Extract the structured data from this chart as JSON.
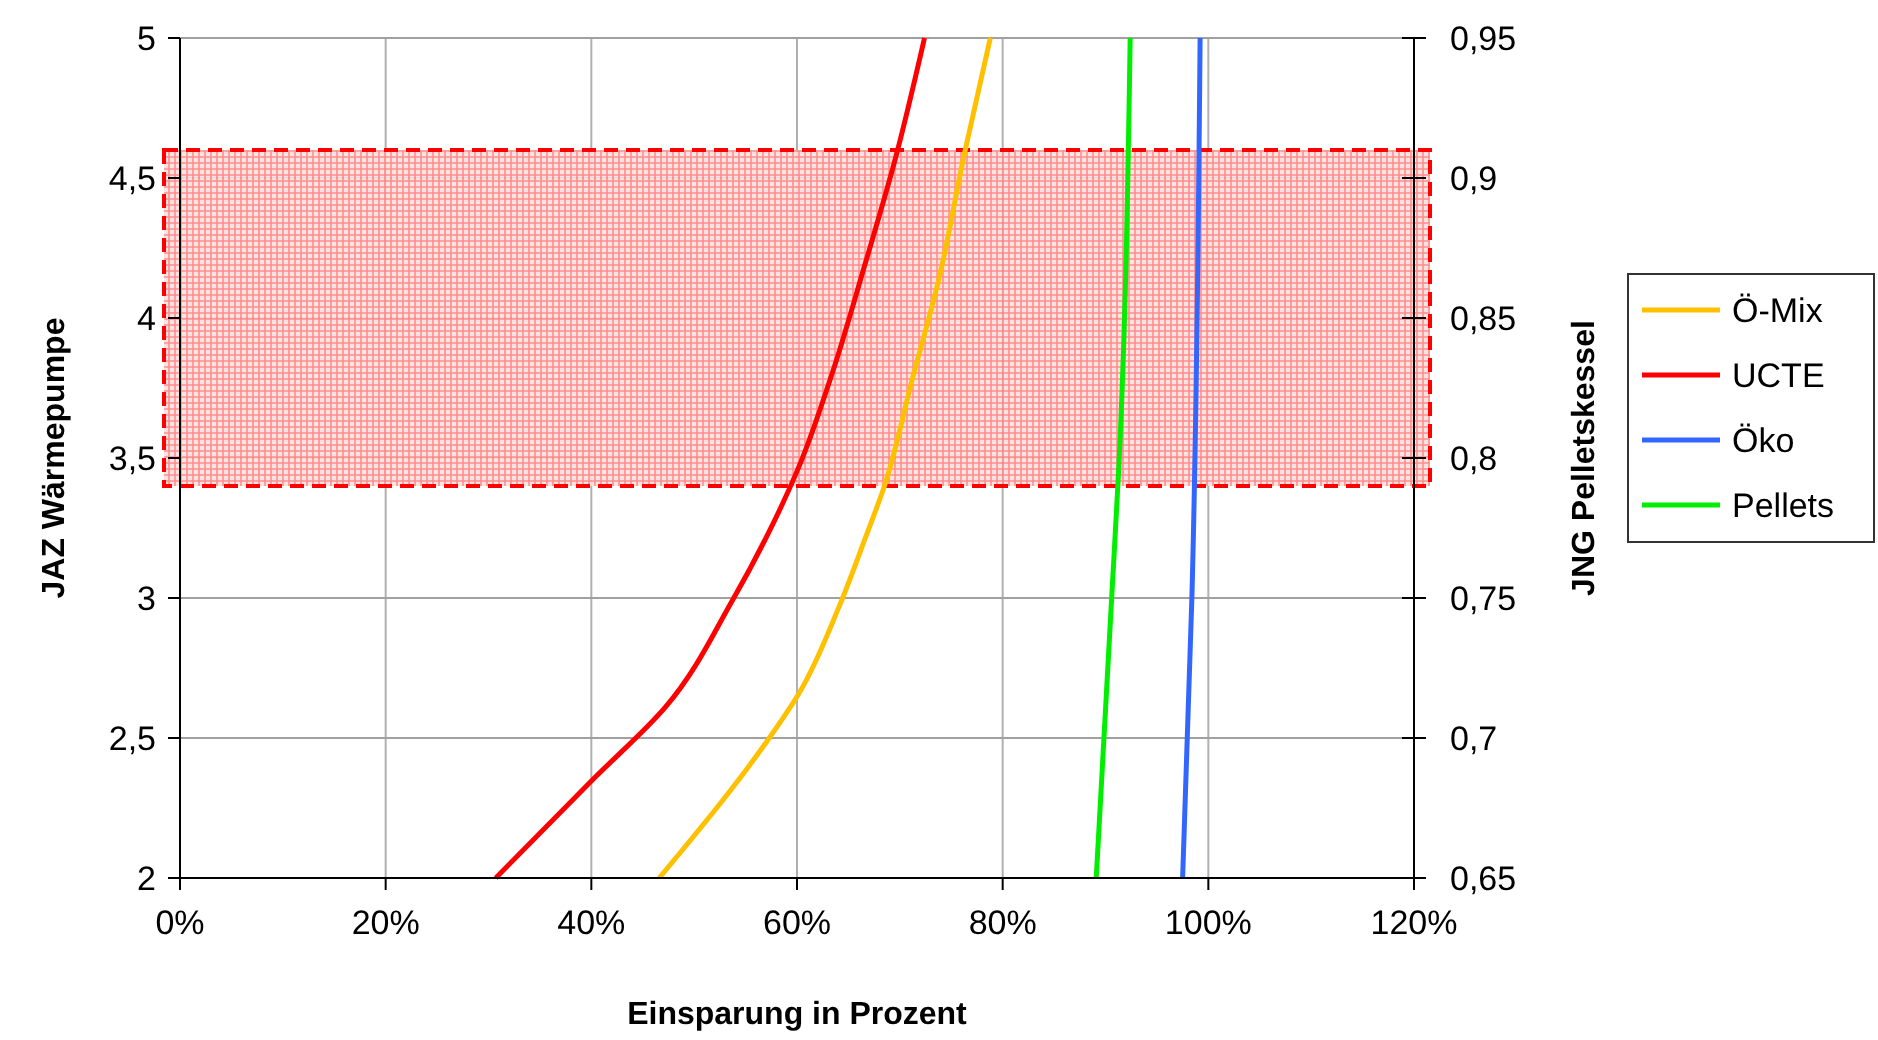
{
  "chart_data": {
    "type": "line",
    "xlabel": "Einsparung in Prozent",
    "ylabel": "JAZ Wärmepumpe",
    "y2label": "JNG Pelletskessel",
    "xlim": [
      0,
      120
    ],
    "xticks": [
      {
        "value": 0,
        "label": "0%"
      },
      {
        "value": 20,
        "label": "20%"
      },
      {
        "value": 40,
        "label": "40%"
      },
      {
        "value": 60,
        "label": "60%"
      },
      {
        "value": 80,
        "label": "80%"
      },
      {
        "value": 100,
        "label": "100%"
      },
      {
        "value": 120,
        "label": "120%"
      }
    ],
    "ylim": [
      2,
      5
    ],
    "yticks": [
      2,
      {
        "value": 2.5,
        "label": "2,5"
      },
      3,
      {
        "value": 3.5,
        "label": "3,5"
      },
      4,
      {
        "value": 4.5,
        "label": "4,5"
      },
      5
    ],
    "y2lim": [
      0.65,
      0.95
    ],
    "y2ticks": [
      {
        "value": 0.65,
        "label": "0,65"
      },
      {
        "value": 0.7,
        "label": "0,7"
      },
      {
        "value": 0.75,
        "label": "0,75"
      },
      {
        "value": 0.8,
        "label": "0,8"
      },
      {
        "value": 0.85,
        "label": "0,85"
      },
      {
        "value": 0.9,
        "label": "0,9"
      },
      {
        "value": 0.95,
        "label": "0,95"
      }
    ],
    "grid": true,
    "legend": "right",
    "line_style": "solid",
    "bands": [
      {
        "axis": "y",
        "from": 3.4,
        "to": 4.6,
        "color": "#ff0000"
      }
    ],
    "series": [
      {
        "name": "Ö-Mix",
        "color": "#ffc000",
        "x": [
          46.6,
          57.3,
          60.2,
          64.1,
          66.6,
          68.5,
          71.2,
          73.8,
          76.3,
          78.8
        ],
        "values": [
          2,
          2.5,
          2.66,
          2.97,
          3.21,
          3.4,
          3.78,
          4.14,
          4.59,
          5
        ]
      },
      {
        "name": "UCTE",
        "color": "#ff0000",
        "x": [
          30.7,
          40.1,
          47.2,
          53.7,
          57.6,
          60.2,
          63.4,
          66.6,
          69.5,
          72.4
        ],
        "values": [
          2,
          2.35,
          2.61,
          2.99,
          3.26,
          3.47,
          3.8,
          4.19,
          4.56,
          5
        ]
      },
      {
        "name": "Öko",
        "color": "#3366ff",
        "x": [
          97.5,
          98.4,
          99.2
        ],
        "values": [
          2,
          3,
          5
        ]
      },
      {
        "name": "Pellets",
        "color": "#00ee00",
        "axis": "y2",
        "x": [
          89.1,
          90.6,
          91.3,
          92.4
        ],
        "values": [
          0.65,
          0.75,
          0.797,
          0.95
        ]
      }
    ]
  }
}
